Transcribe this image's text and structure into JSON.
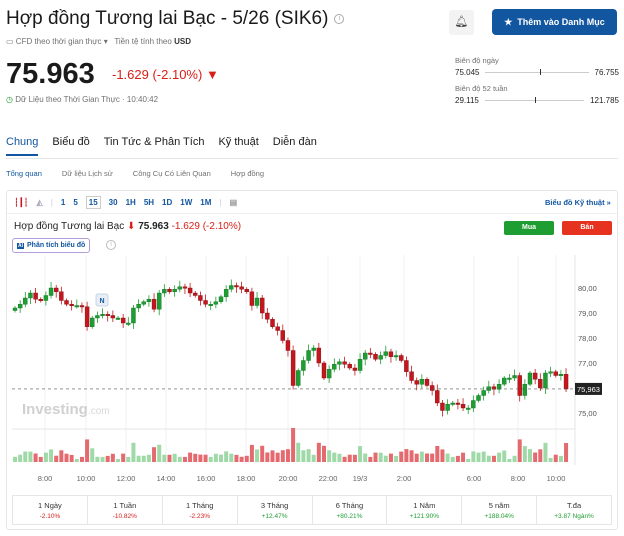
{
  "header": {
    "title": "Hợp đồng Tương lai Bạc - 5/26 (SIK6)",
    "cfd_label": "CFD theo thời gian thực",
    "currency_label": "Tiền tệ tính theo",
    "currency": "USD",
    "price": "75.963",
    "change": "-1.629 (-2.10%)",
    "realtime": "Dữ Liệu theo Thời Gian Thực · 10:40:42",
    "watchlist_button": "Thêm vào Danh Mục",
    "alert_icon": "bell-plus-icon"
  },
  "ranges": {
    "day": {
      "label": "Biên độ ngày",
      "low": "75.045",
      "high": "76.755",
      "position": 0.53
    },
    "week52": {
      "label": "Biên độ 52 tuần",
      "low": "29.115",
      "high": "121.785",
      "position": 0.51
    }
  },
  "tabs": [
    "Chung",
    "Biểu đồ",
    "Tin Tức & Phân Tích",
    "Kỹ thuật",
    "Diễn đàn"
  ],
  "subtabs": [
    "Tổng quan",
    "Dữ liệu Lịch sử",
    "Công Cụ Có Liên Quan",
    "Hợp đồng"
  ],
  "toolbar": {
    "intervals": [
      "1",
      "5",
      "15",
      "30",
      "1H",
      "5H",
      "1D",
      "1W",
      "1M"
    ],
    "selected": "15",
    "tech_chart": "Biểu đồ Kỹ thuật »"
  },
  "chart_header": {
    "name": "Hợp đồng Tương lai Bạc",
    "price": "75.963",
    "change": "-1.629",
    "pct": "(-2.10%)",
    "buy": "Mua",
    "sell": "Bán",
    "ai": "Phân tích biểu đồ",
    "ai_badge": "AI"
  },
  "chart_data": {
    "type": "candlestick",
    "watermark": "Investing.com",
    "marker": "N",
    "last_label": "75,963",
    "last": 75.963,
    "ylim": [
      74.4,
      80.6
    ],
    "yticks": [
      "80,00",
      "79,00",
      "78,00",
      "77,00",
      "75,00"
    ],
    "ytick_values": [
      80,
      79,
      78,
      77,
      75
    ],
    "xticks": [
      "8:00",
      "10:00",
      "12:00",
      "14:00",
      "16:00",
      "18:00",
      "20:00",
      "22:00",
      "19/3",
      "2:00",
      "6:00",
      "8:00",
      "10:00"
    ],
    "closes": [
      79.2,
      79.35,
      79.6,
      79.8,
      79.55,
      79.5,
      79.7,
      80.0,
      79.85,
      79.5,
      79.35,
      79.3,
      79.3,
      79.25,
      78.45,
      78.8,
      78.9,
      78.95,
      78.9,
      78.8,
      78.8,
      78.6,
      78.6,
      79.2,
      79.35,
      79.45,
      79.55,
      79.15,
      79.8,
      79.95,
      79.85,
      79.95,
      80.05,
      80.0,
      79.8,
      79.7,
      79.5,
      79.35,
      79.35,
      79.45,
      79.65,
      79.95,
      80.1,
      80.05,
      79.95,
      79.85,
      79.3,
      79.6,
      79.0,
      78.75,
      78.45,
      78.3,
      77.9,
      77.5,
      76.1,
      76.7,
      77.1,
      77.5,
      77.6,
      77.0,
      76.4,
      76.75,
      76.95,
      77.05,
      76.95,
      76.8,
      76.7,
      77.15,
      77.4,
      77.35,
      77.15,
      77.3,
      77.45,
      77.25,
      77.3,
      77.1,
      76.65,
      76.3,
      76.15,
      76.35,
      76.1,
      75.9,
      75.4,
      75.1,
      75.35,
      75.4,
      75.35,
      75.2,
      75.2,
      75.5,
      75.7,
      75.9,
      76.05,
      75.95,
      76.15,
      76.4,
      76.4,
      76.5,
      75.7,
      76.15,
      76.6,
      76.35,
      76.0,
      76.6,
      76.65,
      76.5,
      76.55,
      75.96
    ],
    "up_color": "#1e9e32",
    "down_color": "#c4161c"
  },
  "performance": [
    {
      "label": "1 Ngày",
      "value": "-2.10%"
    },
    {
      "label": "1 Tuần",
      "value": "-10.82%"
    },
    {
      "label": "1 Tháng",
      "value": "-2.23%"
    },
    {
      "label": "3 Tháng",
      "value": "+12.47%"
    },
    {
      "label": "6 Tháng",
      "value": "+80.21%"
    },
    {
      "label": "1 Năm",
      "value": "+121.90%"
    },
    {
      "label": "5 năm",
      "value": "+188.04%"
    },
    {
      "label": "T.đa",
      "value": "+3.87 Ngàn%"
    }
  ]
}
